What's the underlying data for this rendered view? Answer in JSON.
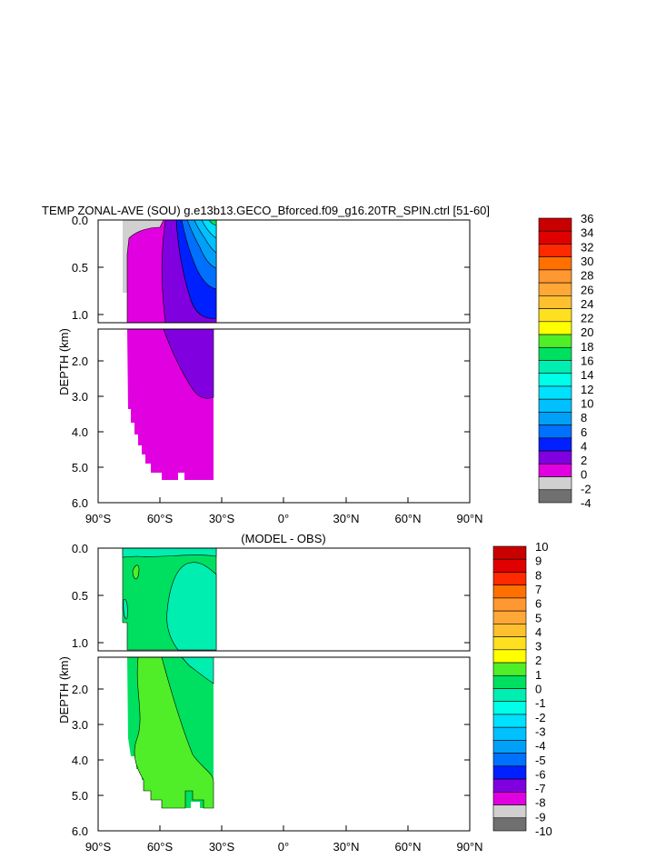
{
  "chart_data": [
    {
      "type": "heatmap",
      "title": "TEMP ZONAL-AVE (SOU) g.e13b13.GECO_Bforced.f09_g16.20TR_SPIN.ctrl [51-60]",
      "ylabel": "DEPTH (km)",
      "xlim": [
        -90,
        90
      ],
      "ylim": [
        0,
        6
      ],
      "x_tick_labels": [
        "90°S",
        "60°S",
        "30°S",
        "0°",
        "30°N",
        "60°N",
        "90°N"
      ],
      "y_tick_labels_upper": [
        "0.0",
        "0.5",
        "1.0"
      ],
      "y_tick_labels_lower": [
        "2.0",
        "3.0",
        "4.0",
        "5.0",
        "6.0"
      ],
      "colorbar_labels": [
        "36",
        "34",
        "32",
        "30",
        "28",
        "26",
        "24",
        "22",
        "20",
        "18",
        "16",
        "14",
        "12",
        "10",
        "8",
        "6",
        "4",
        "2",
        "0",
        "-2",
        "-4"
      ],
      "colorbar_colors": [
        "#c80000",
        "#e00000",
        "#ff2a00",
        "#ff7000",
        "#ff9830",
        "#ffa838",
        "#ffc030",
        "#ffe020",
        "#ffff00",
        "#50ee28",
        "#00e060",
        "#00eeb0",
        "#00ffe8",
        "#00e0ff",
        "#00c0ff",
        "#00a0f8",
        "#0070ff",
        "#0020ff",
        "#8000e0",
        "#e000e0",
        "#d0d0d0",
        "#707070"
      ],
      "regions": [
        {
          "name": "-2 to 0",
          "x": [
            -78,
            -76
          ],
          "depth": [
            0,
            0.8
          ],
          "color": "#d0d0d0"
        },
        {
          "name": "0 to 2",
          "x": [
            -76,
            -35
          ],
          "depth": [
            0,
            5.4
          ],
          "color": "#e000e0"
        },
        {
          "name": "2 to 4",
          "x": [
            -65,
            -35
          ],
          "depth": [
            0,
            3.0
          ],
          "color": "#8000e0"
        },
        {
          "name": ">4",
          "x": [
            -57,
            -35
          ],
          "depth": [
            0,
            1.0
          ],
          "color": "#0020ff"
        }
      ]
    },
    {
      "type": "heatmap",
      "title": "(MODEL - OBS)",
      "ylabel": "DEPTH (km)",
      "xlim": [
        -90,
        90
      ],
      "ylim": [
        0,
        6
      ],
      "x_tick_labels": [
        "90°S",
        "60°S",
        "30°S",
        "0°",
        "30°N",
        "60°N",
        "90°N"
      ],
      "y_tick_labels_upper": [
        "0.0",
        "0.5",
        "1.0"
      ],
      "y_tick_labels_lower": [
        "2.0",
        "3.0",
        "4.0",
        "5.0",
        "6.0"
      ],
      "colorbar_labels": [
        "10",
        "9",
        "8",
        "7",
        "6",
        "5",
        "4",
        "3",
        "2",
        "1",
        "0",
        "-1",
        "-2",
        "-3",
        "-4",
        "-5",
        "-6",
        "-7",
        "-8",
        "-9",
        "-10"
      ],
      "colorbar_colors": [
        "#c80000",
        "#e00000",
        "#ff2a00",
        "#ff7000",
        "#ff9830",
        "#ffa838",
        "#ffc030",
        "#ffe020",
        "#ffff00",
        "#50ee28",
        "#00e060",
        "#00eeb0",
        "#00ffe8",
        "#00e0ff",
        "#00c0ff",
        "#00a0f8",
        "#0070ff",
        "#0020ff",
        "#8000e0",
        "#e000e0",
        "#d0d0d0",
        "#707070"
      ],
      "regions": [
        {
          "name": "0 to 1",
          "x": [
            -78,
            -35
          ],
          "depth": [
            0,
            5.4
          ],
          "color": "#00e060"
        },
        {
          "name": "-1 to 0",
          "x": [
            -50,
            -35
          ],
          "depth": [
            0.2,
            2.0
          ],
          "color": "#00eeb0"
        },
        {
          "name": "1 to 2",
          "x": [
            -76,
            -35
          ],
          "depth": [
            1.2,
            5.4
          ],
          "color": "#50ee28"
        }
      ]
    }
  ]
}
